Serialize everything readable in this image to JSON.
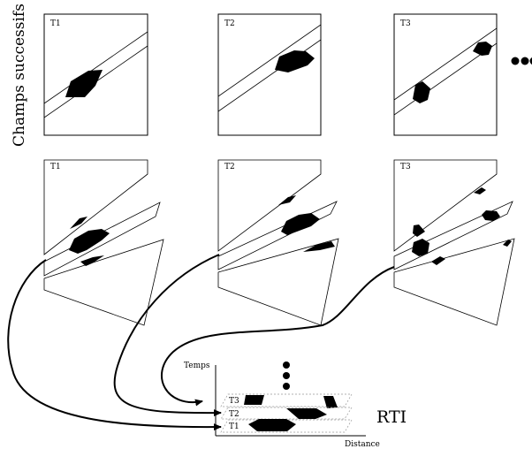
{
  "side_label": "Champs successifs",
  "frames": {
    "top": [
      "T1",
      "T2",
      "T3"
    ],
    "middle": [
      "T1",
      "T2",
      "T3"
    ]
  },
  "ellipsis_glyph": "●",
  "rti": {
    "label": "RTI",
    "y_axis_label": "Temps",
    "x_axis_label": "Distance",
    "rows": [
      "T3",
      "T2",
      "T1"
    ]
  }
}
